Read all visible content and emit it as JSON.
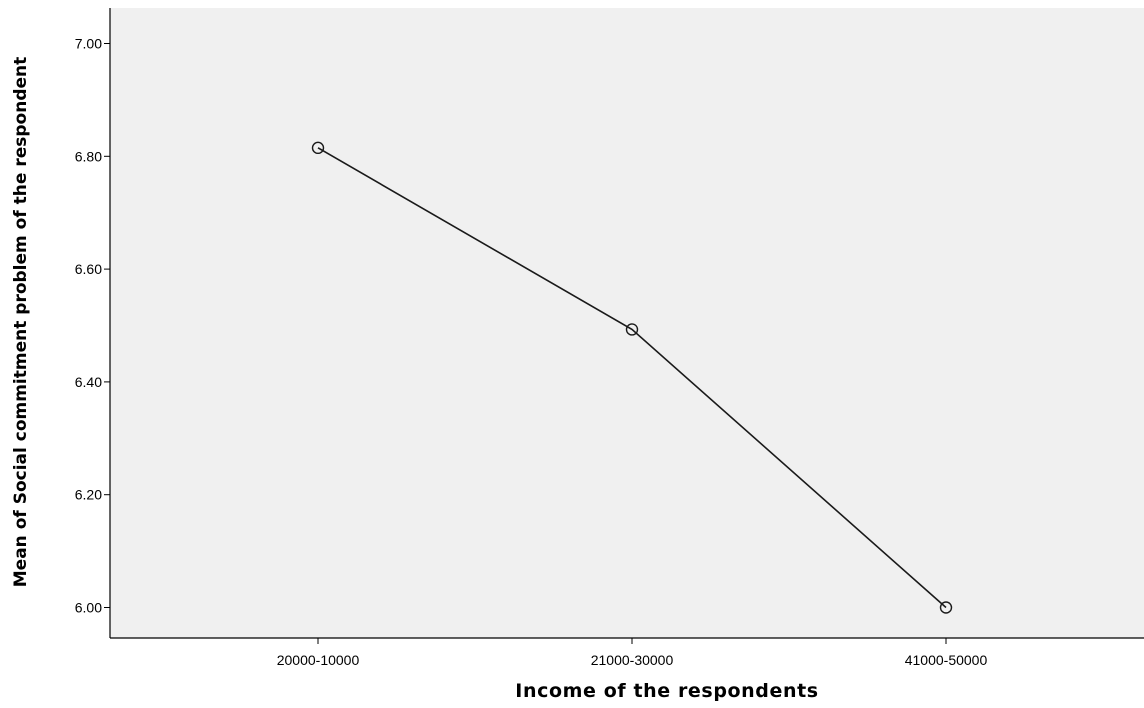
{
  "chart_data": {
    "type": "line",
    "title": "",
    "xlabel": "Income of the respondents",
    "ylabel": "Mean of Social commitment problem of the respondent",
    "categories": [
      "20000-10000",
      "21000-30000",
      "41000-50000"
    ],
    "series": [
      {
        "values": [
          6.815,
          6.493,
          6.0
        ]
      }
    ],
    "ylim": [
      5.94,
      7.05
    ],
    "yticks": [
      "6.00",
      "6.20",
      "6.40",
      "6.60",
      "6.80",
      "7.00"
    ],
    "grid": false,
    "legend": "none",
    "colors": {
      "plot_background": "#f0f0f0",
      "line": "#1a1a1a",
      "axis": "#000000"
    }
  }
}
